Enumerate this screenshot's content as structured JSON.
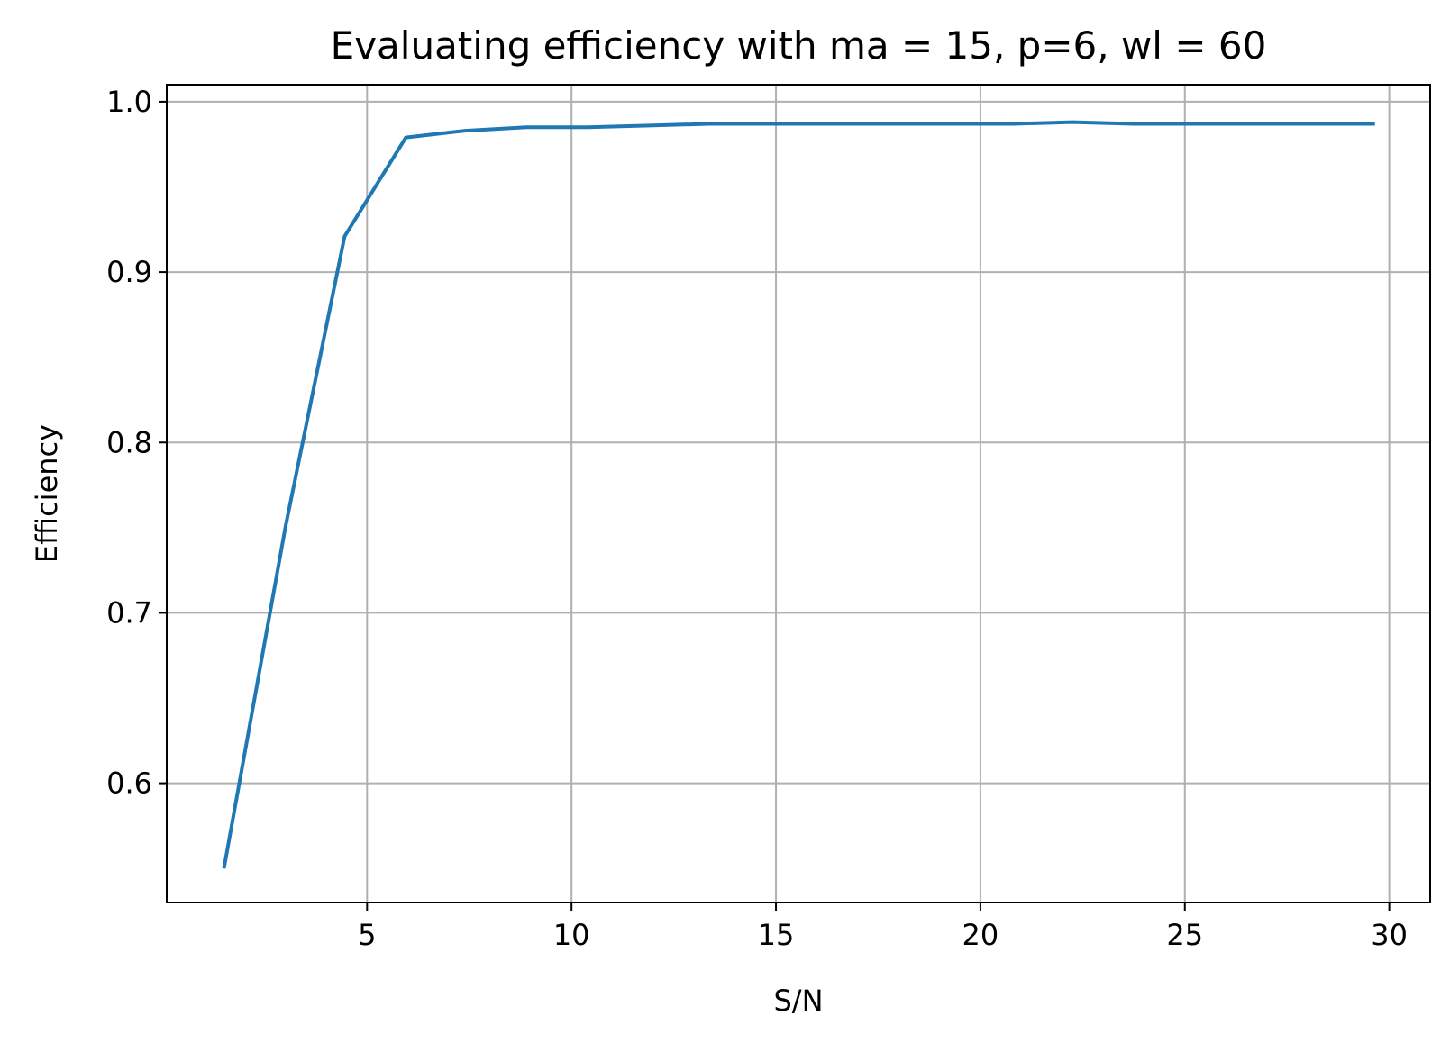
{
  "chart_data": {
    "type": "line",
    "title": "Evaluating efficiency with ma = 15, p=6, wl = 60",
    "xlabel": "S/N",
    "ylabel": "Efficiency",
    "xlim": [
      0.1,
      31.0
    ],
    "ylim": [
      0.53,
      1.01
    ],
    "xticks": [
      5,
      10,
      15,
      20,
      25,
      30
    ],
    "xtick_labels": [
      "5",
      "10",
      "15",
      "20",
      "25",
      "30"
    ],
    "yticks": [
      0.6,
      0.7,
      0.8,
      0.9,
      1.0
    ],
    "ytick_labels": [
      "0.6",
      "0.7",
      "0.8",
      "0.9",
      "1.0"
    ],
    "grid": true,
    "series": [
      {
        "color": "#1f77b4",
        "x": [
          1.5,
          3.0,
          4.45,
          5.95,
          7.4,
          8.9,
          10.4,
          11.9,
          13.35,
          14.85,
          16.3,
          17.8,
          19.3,
          20.8,
          22.25,
          23.75,
          25.2,
          26.7,
          28.2,
          29.65
        ],
        "y": [
          0.55,
          0.75,
          0.921,
          0.979,
          0.983,
          0.985,
          0.985,
          0.986,
          0.987,
          0.987,
          0.987,
          0.987,
          0.987,
          0.987,
          0.988,
          0.987,
          0.987,
          0.987,
          0.987,
          0.987
        ]
      }
    ]
  }
}
